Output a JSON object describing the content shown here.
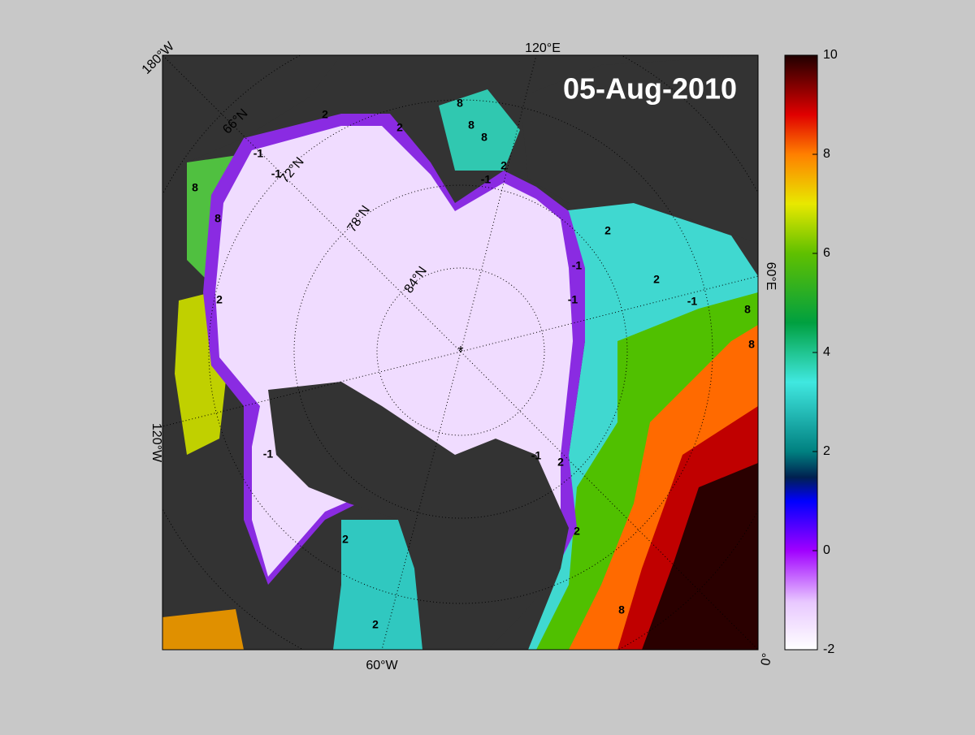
{
  "map": {
    "title": "05-Aug-2010",
    "meridian_labels": [
      "180°W",
      "120°E",
      "60°E",
      "0°",
      "60°W",
      "120°W"
    ],
    "parallel_labels": [
      "66°N",
      "72°N",
      "78°N",
      "84°N"
    ],
    "contour_labels": [
      2,
      2,
      -1,
      -1,
      8,
      8,
      8,
      8,
      -1,
      2,
      -1,
      2,
      8,
      -1,
      2,
      8,
      8,
      -1,
      2,
      -1,
      2,
      8,
      -1,
      2,
      2,
      2
    ],
    "colorbar": {
      "range": [
        -2,
        10
      ],
      "ticks": [
        -2,
        0,
        2,
        4,
        6,
        8,
        10
      ]
    }
  }
}
